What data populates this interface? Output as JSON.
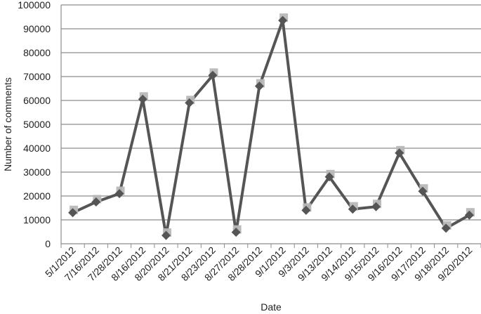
{
  "colors": {
    "line": "#555555",
    "marker": "#555555",
    "shadow": "#b8b8b8",
    "grid": "#8c8c8c",
    "axis": "#8c8c8c",
    "text": "#1f1f1f",
    "background": "#ffffff"
  },
  "chart_data": {
    "type": "line",
    "title": "",
    "xlabel": "Date",
    "ylabel": "Number  of comments",
    "ylim": [
      0,
      100000
    ],
    "yticks": [
      0,
      10000,
      20000,
      30000,
      40000,
      50000,
      60000,
      70000,
      80000,
      90000,
      100000
    ],
    "ytick_labels": [
      "0",
      "10000",
      "20000",
      "30000",
      "40000",
      "50000",
      "60000",
      "70000",
      "80000",
      "90000",
      "100000"
    ],
    "grid": true,
    "legend": "none",
    "marker": "diamond",
    "categories": [
      "5/1/2012",
      "7/16/2012",
      "7/28/2012",
      "8/16/2012",
      "8/20/2012",
      "8/21/2012",
      "8/23/2012",
      "8/27/2012",
      "8/28/2012",
      "9/1/2012",
      "9/3/2012",
      "9/13/2012",
      "9/14/2012",
      "9/15/2012",
      "9/16/2012",
      "9/17/2012",
      "9/18/2012",
      "9/20/2012"
    ],
    "values": [
      13000,
      17500,
      21000,
      60500,
      3500,
      59000,
      70500,
      4800,
      66000,
      93500,
      14000,
      28000,
      14500,
      15500,
      38000,
      22000,
      6500,
      12000
    ]
  }
}
